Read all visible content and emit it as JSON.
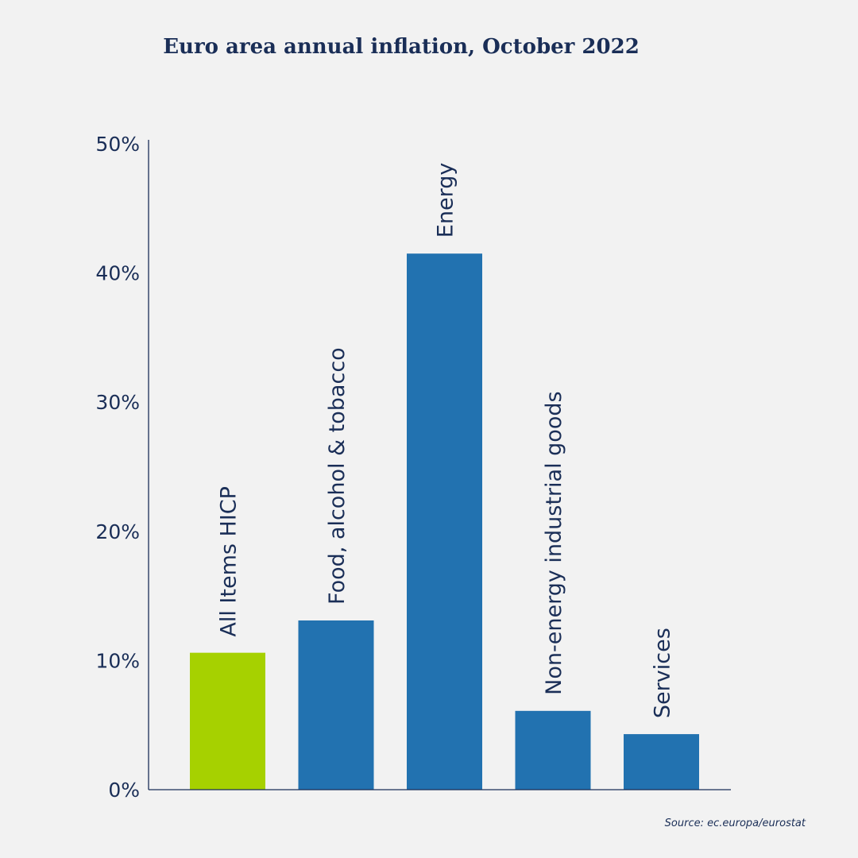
{
  "chart_data": {
    "type": "bar",
    "title": "Euro area annual inflation, October 2022",
    "categories": [
      "All Items HICP",
      "Food, alcohol & tobacco",
      "Energy",
      "Non-energy industrial goods",
      "Services"
    ],
    "values": [
      10.6,
      13.1,
      41.5,
      6.1,
      4.3
    ],
    "colors": [
      "#a6d100",
      "#2272b0",
      "#2272b0",
      "#2272b0",
      "#2272b0"
    ],
    "ylim": [
      0,
      50
    ],
    "yticks": [
      "0%",
      "10%",
      "20%",
      "30%",
      "40%",
      "50%"
    ],
    "xlabel": "",
    "ylabel": "",
    "grid": false,
    "legend": "none"
  },
  "source": "Source: ec.europa/eurostat"
}
